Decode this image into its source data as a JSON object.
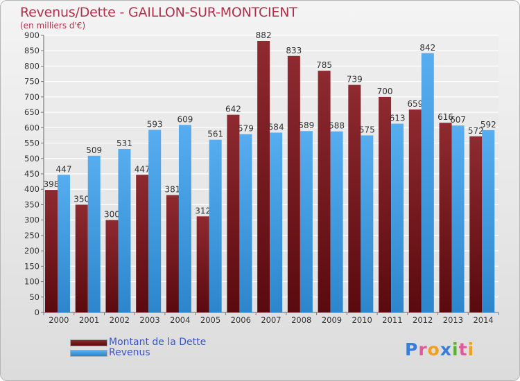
{
  "chart_data": {
    "type": "bar",
    "title": "Revenus/Dette - GAILLON-SUR-MONTCIENT",
    "subtitle": "(en milliers d'€)",
    "categories": [
      "2000",
      "2001",
      "2002",
      "2003",
      "2004",
      "2005",
      "2006",
      "2007",
      "2008",
      "2009",
      "2010",
      "2011",
      "2012",
      "2013",
      "2014"
    ],
    "series": [
      {
        "name": "Montant de la Dette",
        "color": "#7f1f24",
        "values": [
          398,
          350,
          300,
          447,
          381,
          312,
          642,
          882,
          833,
          785,
          739,
          700,
          659,
          616,
          572
        ]
      },
      {
        "name": "Revenus",
        "color": "#4aa3e6",
        "values": [
          447,
          509,
          531,
          593,
          609,
          561,
          579,
          584,
          589,
          588,
          575,
          613,
          842,
          607,
          592
        ]
      }
    ],
    "ylim": [
      0,
      900
    ],
    "yticks": [
      0,
      50,
      100,
      150,
      200,
      250,
      300,
      350,
      400,
      450,
      500,
      550,
      600,
      650,
      700,
      750,
      800,
      850,
      900
    ],
    "grid": true,
    "legend_position": "bottom-left"
  },
  "logo": {
    "letters": [
      "P",
      "r",
      "o",
      "x",
      "i",
      "t",
      "i"
    ],
    "colors": [
      "#3a7dd8",
      "#e05a9a",
      "#f0a020",
      "#3a7dd8",
      "#5ab030",
      "#e05a9a",
      "#f0a020"
    ]
  }
}
